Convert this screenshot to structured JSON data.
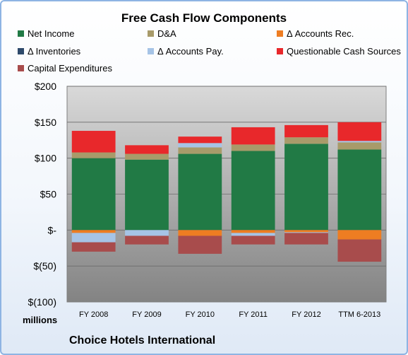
{
  "chart_data": {
    "type": "bar",
    "stacked": true,
    "title": "Free Cash Flow Components",
    "categories": [
      "FY 2008",
      "FY 2009",
      "FY 2010",
      "FY 2011",
      "FY 2012",
      "TTM 6-2013"
    ],
    "y_unit_label": "millions",
    "ylim": [
      -100,
      200
    ],
    "yticks": [
      200,
      150,
      100,
      50,
      0,
      -50,
      -100
    ],
    "ytick_labels": [
      "$200",
      "$150",
      "$100",
      "$50",
      "$-",
      "$(50)",
      "$(100)"
    ],
    "grid": true,
    "legend_position": "top",
    "series": [
      {
        "name": "Net Income",
        "color": "#217a45",
        "values": [
          100,
          98,
          106,
          110,
          120,
          112
        ]
      },
      {
        "name": "D&A",
        "color": "#a89b6a",
        "values": [
          8,
          8,
          9,
          9,
          9,
          10
        ]
      },
      {
        "name": "Δ Accounts Rec.",
        "color": "#ee7d22",
        "values": [
          -4,
          0,
          -8,
          -4,
          -3,
          -13
        ]
      },
      {
        "name": "Δ Inventories",
        "color": "#2e4a6b",
        "values": [
          0,
          0,
          0,
          0,
          0,
          0
        ]
      },
      {
        "name": "Δ Accounts Pay.",
        "color": "#a6c4e6",
        "values": [
          -13,
          -8,
          6,
          -4,
          -1,
          2
        ]
      },
      {
        "name": "Questionable Cash Sources",
        "color": "#e8282b",
        "values": [
          30,
          12,
          9,
          24,
          17,
          26
        ]
      },
      {
        "name": "Capital Expenditures",
        "color": "#a84c4c",
        "values": [
          -13,
          -12,
          -25,
          -12,
          -16,
          -31
        ]
      }
    ]
  },
  "footer": {
    "company": "Choice Hotels International"
  }
}
